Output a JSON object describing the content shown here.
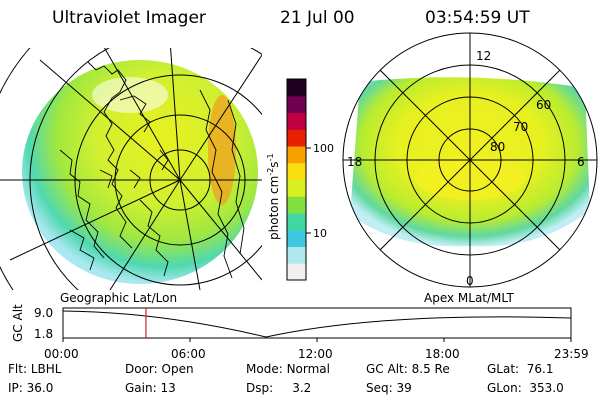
{
  "header": {
    "instrument": "Ultraviolet Imager",
    "date": "21 Jul 00",
    "time": "03:54:59 UT"
  },
  "left_image": {
    "caption": "Geographic Lat/Lon"
  },
  "right_image": {
    "caption": "Apex MLat/MLT",
    "mlt_labels": [
      "12",
      "18",
      "6",
      "0"
    ],
    "lat_labels": [
      "60",
      "70",
      "80"
    ]
  },
  "colorbar": {
    "label": "photon cm",
    "label_sup1": "-2",
    "label_s": "s",
    "label_sup2": "-1",
    "ticks": [
      "100",
      "10"
    ],
    "scale": "log",
    "colors": [
      "#f0f0f0",
      "#b0e8f0",
      "#40c8e0",
      "#40d8a0",
      "#80e040",
      "#d8f020",
      "#f8e010",
      "#f8a000",
      "#e82000",
      "#c00040",
      "#700050",
      "#200020"
    ]
  },
  "timeline": {
    "ylabel": "GC Alt",
    "yticks": [
      "9.0",
      "1.8"
    ],
    "xticks": [
      "00:00",
      "06:00",
      "12:00",
      "18:00",
      "23:59"
    ],
    "cursor_time": "03:54:59",
    "cursor_color": "#d02020"
  },
  "status": {
    "row1": [
      {
        "key": "Flt:",
        "value": "LBHL"
      },
      {
        "key": "Door:",
        "value": "Open"
      },
      {
        "key": "Mode:",
        "value": "Normal"
      },
      {
        "key": "GC Alt:",
        "value": "8.5 Re"
      },
      {
        "key": "GLat:",
        "value": "76.1"
      }
    ],
    "row2": [
      {
        "key": "IP:",
        "value": "36.0"
      },
      {
        "key": "Gain:",
        "value": "13"
      },
      {
        "key": "Dsp:",
        "value": "3.2"
      },
      {
        "key": "Seq:",
        "value": "39"
      },
      {
        "key": "GLon:",
        "value": "353.0"
      }
    ]
  }
}
